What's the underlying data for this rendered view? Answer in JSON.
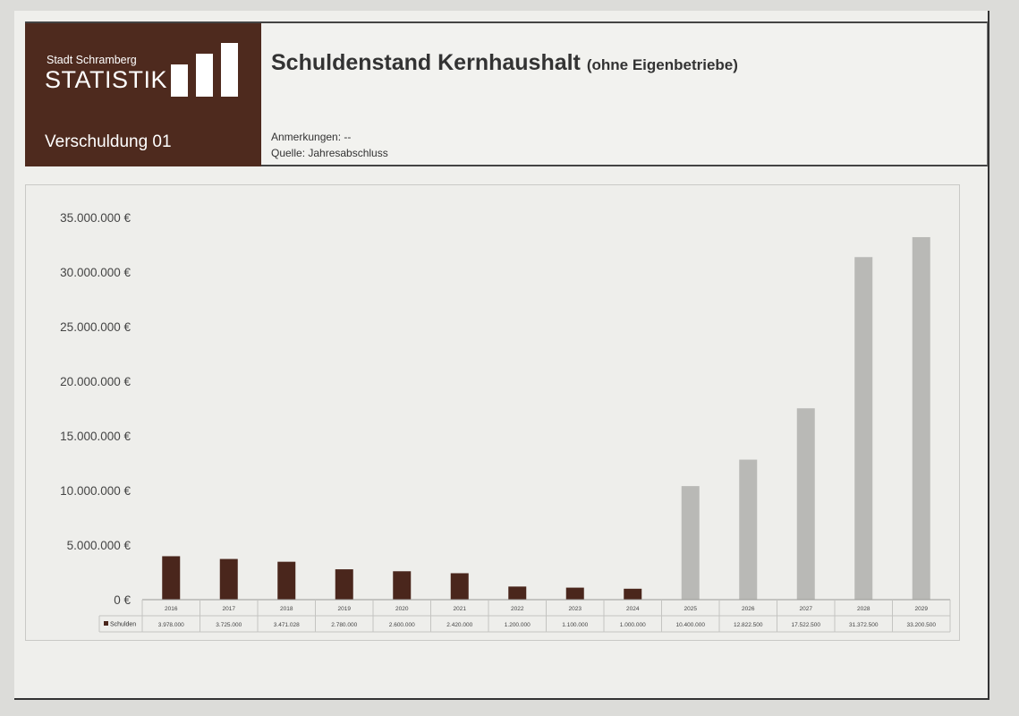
{
  "brand": {
    "city": "Stadt Schramberg",
    "name": "STATISTIK",
    "sheet": "Verschuldung 01"
  },
  "header": {
    "title": "Schuldenstand Kernhaushalt",
    "subtitle": "(ohne Eigenbetriebe)",
    "notes": "Anmerkungen: --",
    "source": "Quelle: Jahresabschluss"
  },
  "colors": {
    "brand_brown": "#4e2a1e",
    "actual_bar": "#4a261c",
    "planned_bar": "#b9b9b6"
  },
  "chart_data": {
    "type": "bar",
    "title": "Schuldenstand Kernhaushalt (ohne Eigenbetriebe)",
    "categories": [
      "2016",
      "2017",
      "2018",
      "2019",
      "2020",
      "2021",
      "2022",
      "2023",
      "2024",
      "2025",
      "2026",
      "2027",
      "2028",
      "2029"
    ],
    "series": [
      {
        "name": "Schulden",
        "values": [
          3978000,
          3725000,
          3471028,
          2780000,
          2600000,
          2420000,
          1200000,
          1100000,
          1000000,
          10400000,
          12822500,
          17522500,
          31372500,
          33200500
        ],
        "value_labels": [
          "3.978.000",
          "3.725.000",
          "3.471.028",
          "2.780.000",
          "2.600.000",
          "2.420.000",
          "1.200.000",
          "1.100.000",
          "1.000.000",
          "10.400.000",
          "12.822.500",
          "17.522.500",
          "31.372.500",
          "33.200.500"
        ],
        "bar_style": [
          "actual",
          "actual",
          "actual",
          "actual",
          "actual",
          "actual",
          "actual",
          "actual",
          "actual",
          "planned",
          "planned",
          "planned",
          "planned",
          "planned"
        ]
      }
    ],
    "ylim": [
      0,
      35000000
    ],
    "yticks": [
      {
        "value": 0,
        "label": "0 €"
      },
      {
        "value": 5000000,
        "label": "5.000.000 €"
      },
      {
        "value": 10000000,
        "label": "10.000.000 €"
      },
      {
        "value": 15000000,
        "label": "15.000.000 €"
      },
      {
        "value": 20000000,
        "label": "20.000.000 €"
      },
      {
        "value": 25000000,
        "label": "25.000.000 €"
      },
      {
        "value": 30000000,
        "label": "30.000.000 €"
      },
      {
        "value": 35000000,
        "label": "35.000.000 €"
      }
    ],
    "grid": false,
    "legend": "data-table"
  }
}
